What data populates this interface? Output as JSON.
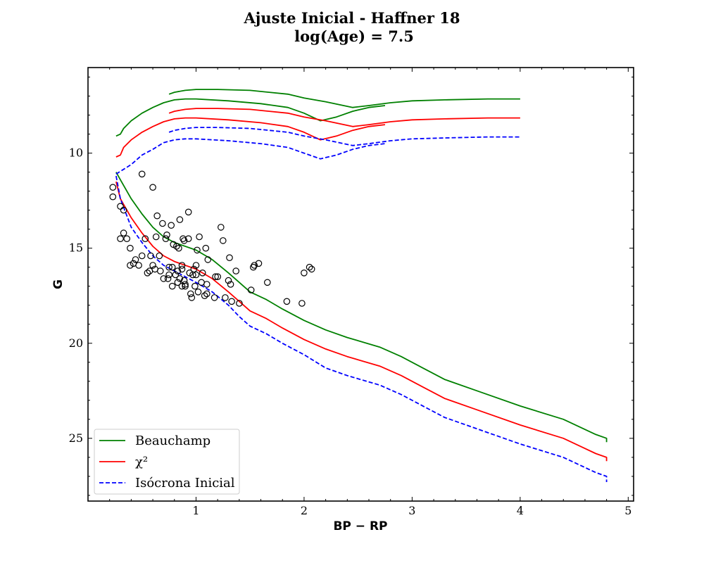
{
  "chart_data": {
    "type": "line",
    "title": "Ajuste Inicial - Haffner 18",
    "subtitle": "log(Age) = 7.5",
    "xlabel": "BP − RP",
    "ylabel": "G",
    "xlim": [
      0.0,
      5.05
    ],
    "ylim": [
      28.3,
      5.5
    ],
    "y_inverted": true,
    "xticks": [
      1,
      2,
      3,
      4,
      5
    ],
    "yticks": [
      10,
      15,
      20,
      25
    ],
    "grid": false,
    "legend_position": "bottom-left",
    "series": [
      {
        "name": "Beauchamp",
        "color": "#008000",
        "style": "solid",
        "segments": [
          [
            [
              0.26,
              9.1
            ],
            [
              0.3,
              9.0
            ],
            [
              0.33,
              8.7
            ],
            [
              0.4,
              8.3
            ],
            [
              0.5,
              7.9
            ],
            [
              0.6,
              7.6
            ],
            [
              0.7,
              7.35
            ],
            [
              0.8,
              7.2
            ],
            [
              0.9,
              7.15
            ],
            [
              1.0,
              7.15
            ],
            [
              1.3,
              7.25
            ],
            [
              1.6,
              7.4
            ],
            [
              1.85,
              7.6
            ],
            [
              2.0,
              7.9
            ],
            [
              2.15,
              8.3
            ],
            [
              2.3,
              8.1
            ],
            [
              2.45,
              7.8
            ],
            [
              2.6,
              7.6
            ],
            [
              2.75,
              7.5
            ]
          ],
          [
            [
              0.26,
              11.0
            ],
            [
              0.3,
              11.4
            ],
            [
              0.4,
              12.4
            ],
            [
              0.5,
              13.2
            ],
            [
              0.6,
              13.9
            ],
            [
              0.7,
              14.4
            ],
            [
              0.8,
              14.7
            ],
            [
              1.0,
              15.1
            ],
            [
              1.15,
              15.6
            ],
            [
              1.3,
              16.3
            ],
            [
              1.4,
              16.8
            ],
            [
              1.5,
              17.3
            ],
            [
              1.65,
              17.7
            ],
            [
              1.8,
              18.2
            ],
            [
              2.0,
              18.8
            ],
            [
              2.2,
              19.3
            ],
            [
              2.4,
              19.7
            ],
            [
              2.7,
              20.2
            ],
            [
              2.9,
              20.7
            ],
            [
              3.1,
              21.3
            ],
            [
              3.3,
              21.9
            ],
            [
              3.6,
              22.5
            ],
            [
              4.0,
              23.3
            ],
            [
              4.4,
              24.0
            ],
            [
              4.7,
              24.8
            ],
            [
              4.8,
              25.0
            ],
            [
              4.8,
              25.2
            ]
          ],
          [
            [
              0.75,
              6.9
            ],
            [
              0.8,
              6.8
            ],
            [
              0.9,
              6.7
            ],
            [
              1.0,
              6.65
            ],
            [
              1.2,
              6.65
            ],
            [
              1.5,
              6.7
            ],
            [
              1.85,
              6.9
            ],
            [
              2.0,
              7.1
            ],
            [
              2.2,
              7.3
            ],
            [
              2.45,
              7.6
            ],
            [
              2.6,
              7.5
            ],
            [
              2.8,
              7.35
            ],
            [
              3.0,
              7.25
            ],
            [
              3.3,
              7.2
            ],
            [
              3.7,
              7.15
            ],
            [
              4.0,
              7.15
            ]
          ]
        ]
      },
      {
        "name": "χ²",
        "color": "#ff0000",
        "style": "solid",
        "segments": [
          [
            [
              0.26,
              10.2
            ],
            [
              0.3,
              10.1
            ],
            [
              0.33,
              9.7
            ],
            [
              0.4,
              9.3
            ],
            [
              0.5,
              8.9
            ],
            [
              0.6,
              8.6
            ],
            [
              0.7,
              8.35
            ],
            [
              0.8,
              8.2
            ],
            [
              0.9,
              8.15
            ],
            [
              1.0,
              8.15
            ],
            [
              1.3,
              8.25
            ],
            [
              1.6,
              8.4
            ],
            [
              1.85,
              8.6
            ],
            [
              2.0,
              8.9
            ],
            [
              2.15,
              9.3
            ],
            [
              2.3,
              9.1
            ],
            [
              2.45,
              8.8
            ],
            [
              2.6,
              8.6
            ],
            [
              2.75,
              8.5
            ]
          ],
          [
            [
              0.26,
              11.5
            ],
            [
              0.3,
              12.4
            ],
            [
              0.4,
              13.4
            ],
            [
              0.5,
              14.2
            ],
            [
              0.6,
              14.9
            ],
            [
              0.7,
              15.4
            ],
            [
              0.8,
              15.7
            ],
            [
              1.0,
              16.1
            ],
            [
              1.15,
              16.6
            ],
            [
              1.3,
              17.3
            ],
            [
              1.4,
              17.8
            ],
            [
              1.5,
              18.3
            ],
            [
              1.65,
              18.7
            ],
            [
              1.8,
              19.2
            ],
            [
              2.0,
              19.8
            ],
            [
              2.2,
              20.3
            ],
            [
              2.4,
              20.7
            ],
            [
              2.7,
              21.2
            ],
            [
              2.9,
              21.7
            ],
            [
              3.1,
              22.3
            ],
            [
              3.3,
              22.9
            ],
            [
              3.6,
              23.5
            ],
            [
              4.0,
              24.3
            ],
            [
              4.4,
              25.0
            ],
            [
              4.7,
              25.8
            ],
            [
              4.8,
              26.0
            ],
            [
              4.8,
              26.2
            ]
          ],
          [
            [
              0.75,
              7.9
            ],
            [
              0.8,
              7.8
            ],
            [
              0.9,
              7.7
            ],
            [
              1.0,
              7.65
            ],
            [
              1.2,
              7.65
            ],
            [
              1.5,
              7.7
            ],
            [
              1.85,
              7.9
            ],
            [
              2.0,
              8.1
            ],
            [
              2.2,
              8.3
            ],
            [
              2.45,
              8.6
            ],
            [
              2.6,
              8.5
            ],
            [
              2.8,
              8.35
            ],
            [
              3.0,
              8.25
            ],
            [
              3.3,
              8.2
            ],
            [
              3.7,
              8.15
            ],
            [
              4.0,
              8.15
            ]
          ]
        ]
      },
      {
        "name": "Isócrona Inicial",
        "color": "#0000ff",
        "style": "dashed",
        "segments": [
          [
            [
              0.26,
              11.1
            ],
            [
              0.4,
              10.6
            ],
            [
              0.5,
              10.1
            ],
            [
              0.6,
              9.8
            ],
            [
              0.7,
              9.45
            ],
            [
              0.8,
              9.3
            ],
            [
              0.9,
              9.25
            ],
            [
              1.0,
              9.25
            ],
            [
              1.3,
              9.35
            ],
            [
              1.6,
              9.5
            ],
            [
              1.85,
              9.7
            ],
            [
              2.0,
              10.0
            ],
            [
              2.15,
              10.3
            ],
            [
              2.3,
              10.1
            ],
            [
              2.45,
              9.8
            ],
            [
              2.6,
              9.6
            ],
            [
              2.75,
              9.5
            ]
          ],
          [
            [
              0.26,
              11.2
            ],
            [
              0.3,
              12.4
            ],
            [
              0.4,
              13.9
            ],
            [
              0.5,
              14.7
            ],
            [
              0.6,
              15.4
            ],
            [
              0.7,
              15.9
            ],
            [
              0.8,
              16.2
            ],
            [
              1.0,
              16.8
            ],
            [
              1.15,
              17.3
            ],
            [
              1.3,
              18.0
            ],
            [
              1.4,
              18.6
            ],
            [
              1.5,
              19.1
            ],
            [
              1.65,
              19.5
            ],
            [
              1.8,
              20.0
            ],
            [
              2.0,
              20.6
            ],
            [
              2.2,
              21.3
            ],
            [
              2.4,
              21.7
            ],
            [
              2.7,
              22.2
            ],
            [
              2.9,
              22.7
            ],
            [
              3.1,
              23.3
            ],
            [
              3.3,
              23.9
            ],
            [
              3.6,
              24.5
            ],
            [
              4.0,
              25.3
            ],
            [
              4.4,
              26.0
            ],
            [
              4.7,
              26.8
            ],
            [
              4.8,
              27.0
            ],
            [
              4.8,
              27.3
            ]
          ],
          [
            [
              0.75,
              8.9
            ],
            [
              0.8,
              8.8
            ],
            [
              0.9,
              8.7
            ],
            [
              1.0,
              8.65
            ],
            [
              1.2,
              8.65
            ],
            [
              1.5,
              8.7
            ],
            [
              1.85,
              8.9
            ],
            [
              2.0,
              9.1
            ],
            [
              2.2,
              9.3
            ],
            [
              2.45,
              9.6
            ],
            [
              2.6,
              9.5
            ],
            [
              2.8,
              9.35
            ],
            [
              3.0,
              9.25
            ],
            [
              3.3,
              9.2
            ],
            [
              3.7,
              9.15
            ],
            [
              4.0,
              9.15
            ]
          ]
        ]
      }
    ],
    "scatter": {
      "marker": "open-circle",
      "color": "#000000",
      "points": [
        [
          0.23,
          11.8
        ],
        [
          0.23,
          12.3
        ],
        [
          0.3,
          12.8
        ],
        [
          0.33,
          13.0
        ],
        [
          0.33,
          14.2
        ],
        [
          0.3,
          14.5
        ],
        [
          0.36,
          14.5
        ],
        [
          0.39,
          15.0
        ],
        [
          0.39,
          15.9
        ],
        [
          0.42,
          15.8
        ],
        [
          0.44,
          15.6
        ],
        [
          0.47,
          15.9
        ],
        [
          0.5,
          15.4
        ],
        [
          0.5,
          11.1
        ],
        [
          0.53,
          14.5
        ],
        [
          0.55,
          16.3
        ],
        [
          0.57,
          16.2
        ],
        [
          0.58,
          15.4
        ],
        [
          0.6,
          11.8
        ],
        [
          0.6,
          15.9
        ],
        [
          0.62,
          16.1
        ],
        [
          0.63,
          14.4
        ],
        [
          0.64,
          13.3
        ],
        [
          0.66,
          15.4
        ],
        [
          0.67,
          16.2
        ],
        [
          0.69,
          13.7
        ],
        [
          0.7,
          16.6
        ],
        [
          0.72,
          14.5
        ],
        [
          0.73,
          14.3
        ],
        [
          0.74,
          16.6
        ],
        [
          0.75,
          16.0
        ],
        [
          0.75,
          16.4
        ],
        [
          0.77,
          13.8
        ],
        [
          0.78,
          16.0
        ],
        [
          0.78,
          17.0
        ],
        [
          0.79,
          14.8
        ],
        [
          0.81,
          16.4
        ],
        [
          0.82,
          14.9
        ],
        [
          0.83,
          16.2
        ],
        [
          0.83,
          16.8
        ],
        [
          0.84,
          15.0
        ],
        [
          0.85,
          13.5
        ],
        [
          0.85,
          16.6
        ],
        [
          0.87,
          15.9
        ],
        [
          0.87,
          16.1
        ],
        [
          0.87,
          17.0
        ],
        [
          0.88,
          14.5
        ],
        [
          0.89,
          14.6
        ],
        [
          0.89,
          16.7
        ],
        [
          0.9,
          16.9
        ],
        [
          0.9,
          17.0
        ],
        [
          0.93,
          13.1
        ],
        [
          0.93,
          14.5
        ],
        [
          0.94,
          16.3
        ],
        [
          0.95,
          17.4
        ],
        [
          0.96,
          17.6
        ],
        [
          0.97,
          16.4
        ],
        [
          0.98,
          16.1
        ],
        [
          0.99,
          17.0
        ],
        [
          1.0,
          15.9
        ],
        [
          1.0,
          16.4
        ],
        [
          1.01,
          15.1
        ],
        [
          1.02,
          17.3
        ],
        [
          1.03,
          14.4
        ],
        [
          1.05,
          16.8
        ],
        [
          1.06,
          16.3
        ],
        [
          1.08,
          17.5
        ],
        [
          1.09,
          15.0
        ],
        [
          1.1,
          16.9
        ],
        [
          1.1,
          17.4
        ],
        [
          1.11,
          15.6
        ],
        [
          1.17,
          17.6
        ],
        [
          1.18,
          16.5
        ],
        [
          1.2,
          16.5
        ],
        [
          1.23,
          13.9
        ],
        [
          1.25,
          14.6
        ],
        [
          1.27,
          17.6
        ],
        [
          1.3,
          16.7
        ],
        [
          1.31,
          15.5
        ],
        [
          1.32,
          16.9
        ],
        [
          1.33,
          17.8
        ],
        [
          1.37,
          16.2
        ],
        [
          1.4,
          17.9
        ],
        [
          1.51,
          17.2
        ],
        [
          1.53,
          16.0
        ],
        [
          1.54,
          15.9
        ],
        [
          1.58,
          15.8
        ],
        [
          1.66,
          16.8
        ],
        [
          1.84,
          17.8
        ],
        [
          1.98,
          17.9
        ],
        [
          2.0,
          16.3
        ],
        [
          2.05,
          16.0
        ],
        [
          2.07,
          16.1
        ]
      ]
    }
  }
}
